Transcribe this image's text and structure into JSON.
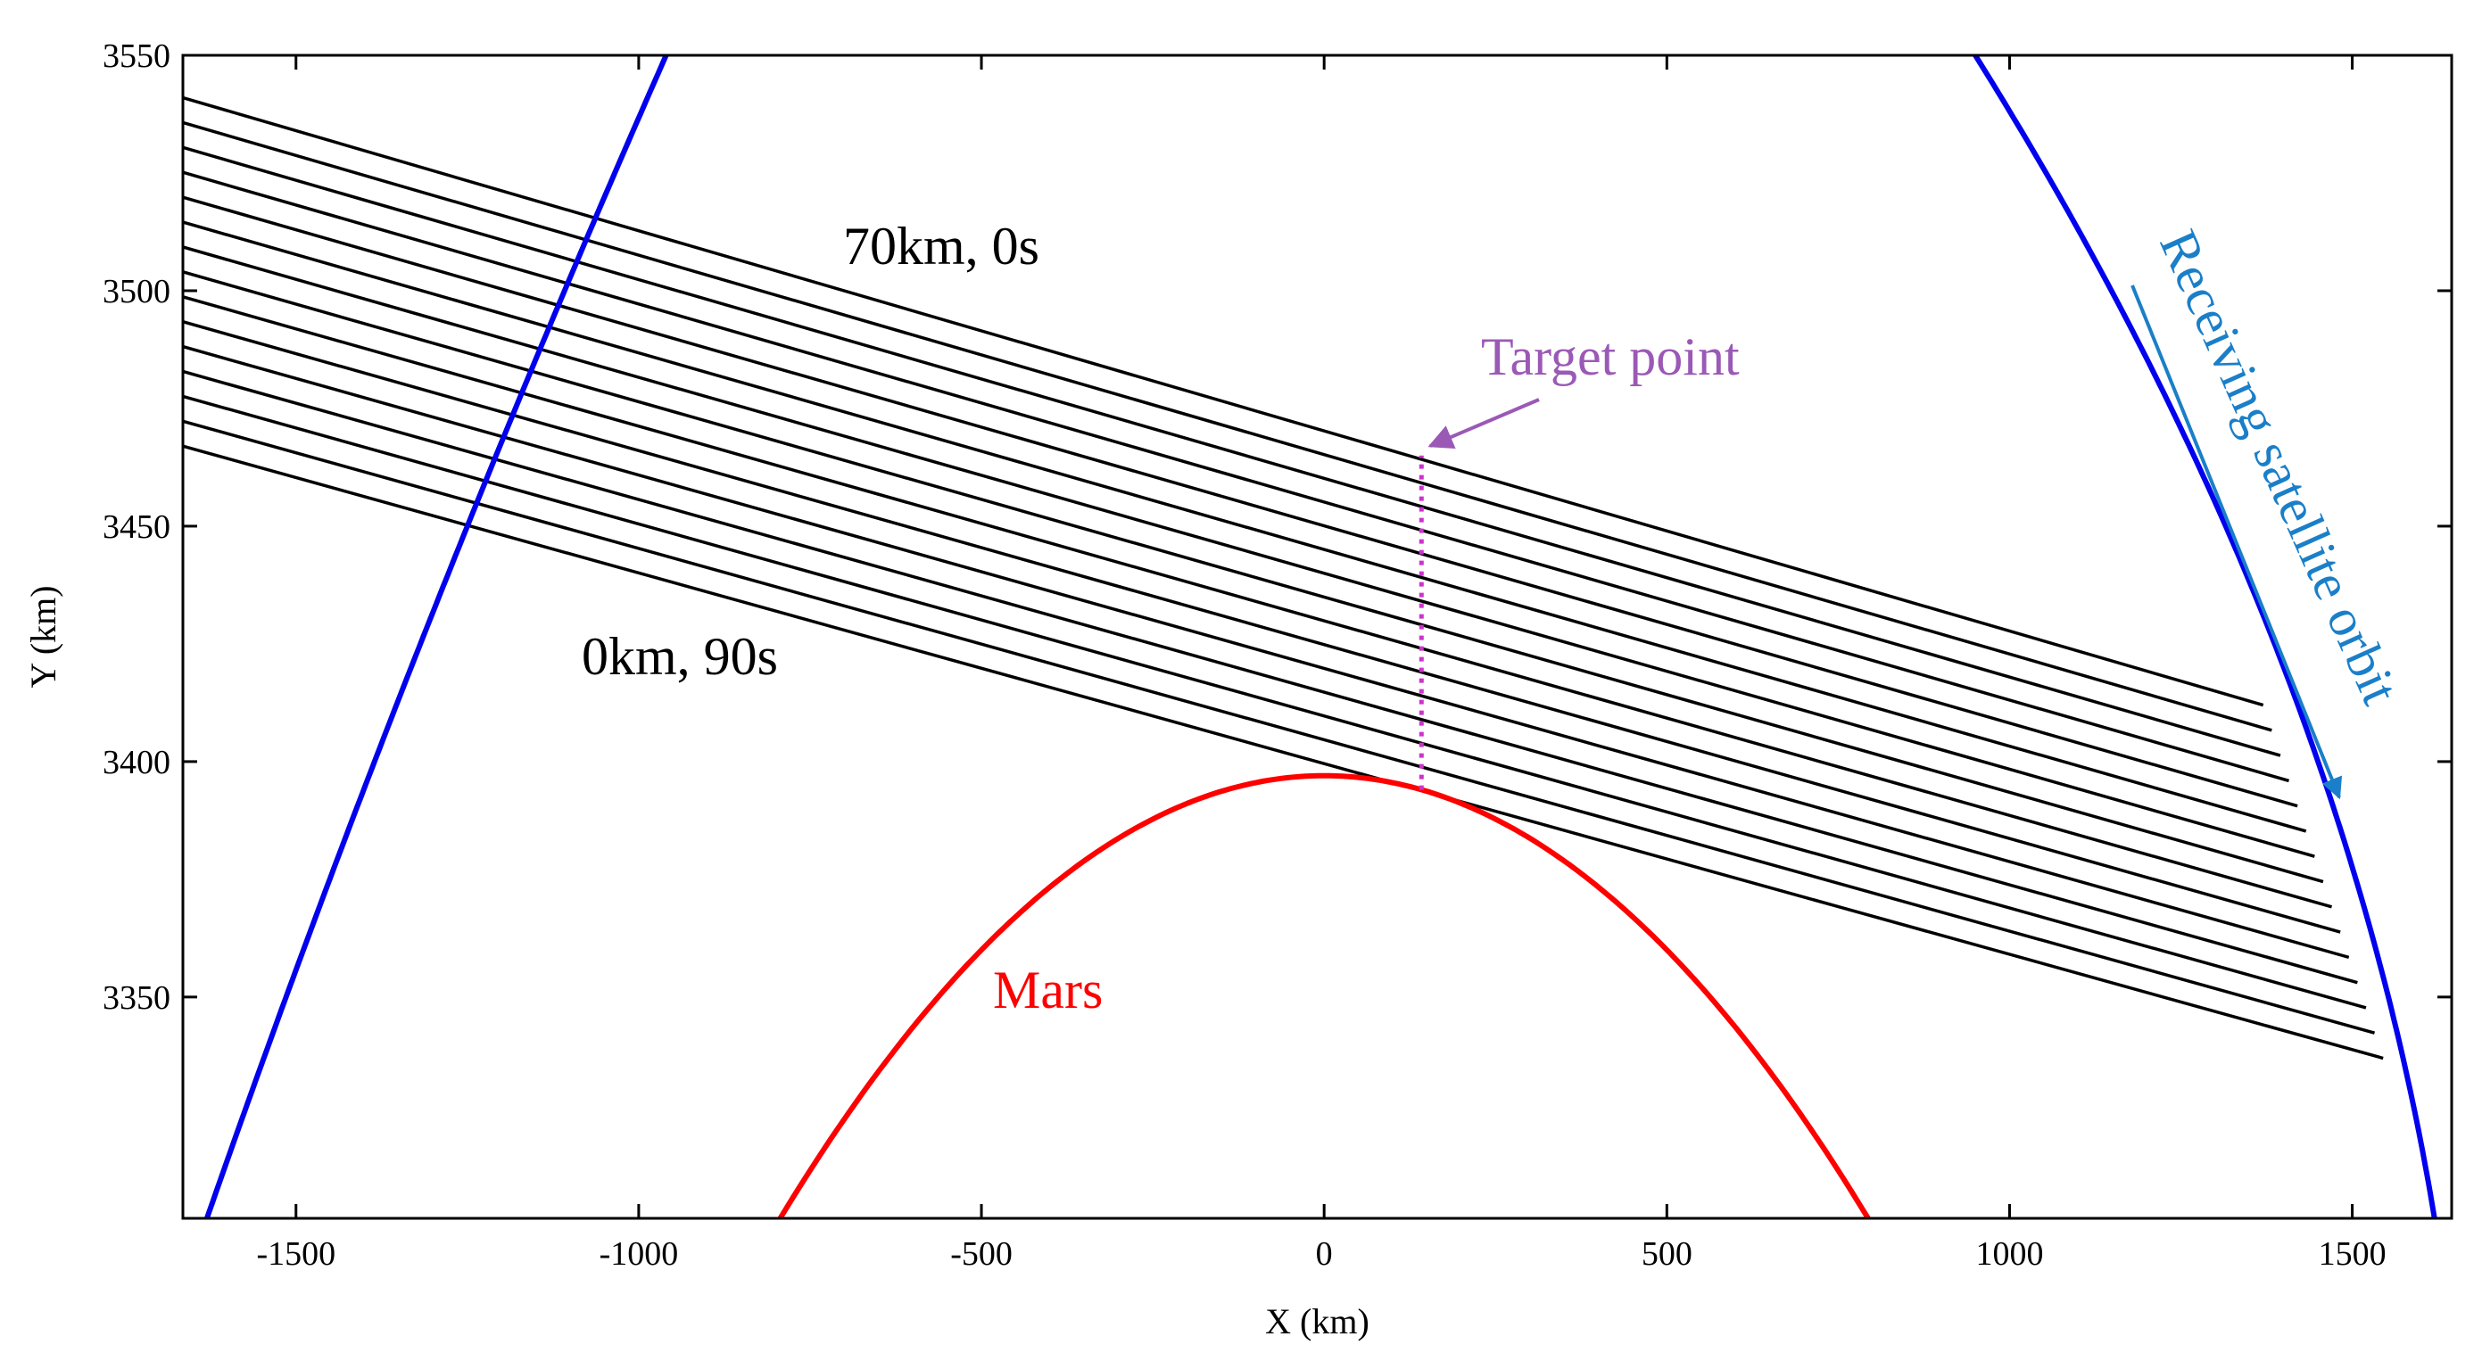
{
  "chart_data": {
    "type": "line",
    "title": "",
    "xlabel": "X (km)",
    "ylabel": "Y (km)",
    "xlim": [
      -1665,
      1645
    ],
    "ylim": [
      3303,
      3550
    ],
    "xticks": [
      -1500,
      -1000,
      -500,
      0,
      500,
      1000,
      1500
    ],
    "yticks": [
      3350,
      3400,
      3450,
      3500,
      3550
    ],
    "grid": false,
    "mars": {
      "label": "Mars",
      "color": "#ff0000",
      "center": [
        0,
        0
      ],
      "radius": 3397
    },
    "orbit": {
      "label": "Receiving satellite orbit",
      "color": "#0000ee",
      "left_branch": [
        [
          -1630,
          3303
        ],
        [
          -1250,
          3450
        ],
        [
          -960,
          3550
        ]
      ],
      "right_branch": [
        [
          950,
          3550
        ],
        [
          1450,
          3400
        ],
        [
          1620,
          3303
        ]
      ]
    },
    "rays": {
      "color": "#000000",
      "count": 15,
      "x_start": -1665,
      "y_start_top": 3541,
      "y_start_bottom": 3467,
      "x_end_top": 1370,
      "x_end_bottom": 1545,
      "y_end_top": 3412,
      "y_end_bottom": 3337,
      "top_label": "70km, 0s",
      "bottom_label": "0km, 90s"
    },
    "target_point": {
      "label": "Target point",
      "color": "#9b59b6",
      "x": 142,
      "y_bottom": 3394,
      "y_top": 3465
    },
    "orbit_arrow_color": "#1a7fc8"
  }
}
